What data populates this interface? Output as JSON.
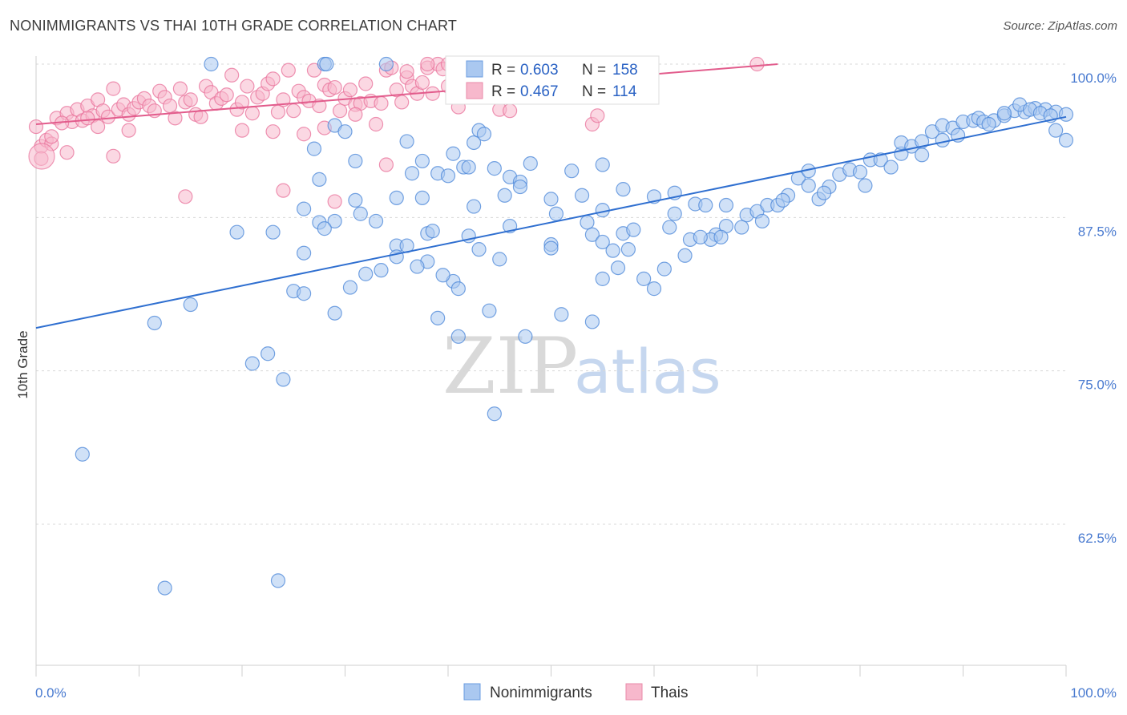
{
  "header": {
    "title": "NONIMMIGRANTS VS THAI 10TH GRADE CORRELATION CHART",
    "source": "Source: ZipAtlas.com"
  },
  "watermark": {
    "zip": "ZIP",
    "atlas": "atlas"
  },
  "legend": {
    "rows": [
      {
        "r_label": "R =",
        "r_value": "0.603",
        "n_label": "N =",
        "n_value": "158"
      },
      {
        "r_label": "R =",
        "r_value": "0.467",
        "n_label": "N =",
        "n_value": "114"
      }
    ]
  },
  "bottom_legend": {
    "items": [
      "Nonimmigrants",
      "Thais"
    ]
  },
  "chart_data": {
    "type": "scatter",
    "title": "NONIMMIGRANTS VS THAI 10TH GRADE CORRELATION CHART",
    "ylabel": "10th Grade",
    "xlabel": "",
    "xlim": [
      0,
      100
    ],
    "ylim": [
      52.5,
      101
    ],
    "x_tick_labels": [
      "0.0%",
      "100.0%"
    ],
    "y_ticks": [
      62.5,
      75.0,
      87.5,
      100.0
    ],
    "y_tick_labels": [
      "62.5%",
      "75.0%",
      "87.5%",
      "100.0%"
    ],
    "grid": "horizontal dashed",
    "legend_position": "top-center",
    "colors": {
      "blue": "#4a86d8",
      "blue_fill": "#aac8f0",
      "pink": "#e8709a",
      "pink_fill": "#f7b8cc"
    },
    "series": [
      {
        "name": "Nonimmigrants",
        "R": 0.603,
        "N": 158,
        "trend": [
          [
            0,
            78.5
          ],
          [
            100,
            95.7
          ]
        ],
        "points": [
          [
            17,
            100
          ],
          [
            28,
            100
          ],
          [
            28.2,
            100
          ],
          [
            34,
            100
          ],
          [
            29,
            95
          ],
          [
            31,
            92.1
          ],
          [
            27,
            93.1
          ],
          [
            37.5,
            92.1
          ],
          [
            39,
            91.1
          ],
          [
            40.5,
            92.7
          ],
          [
            41.5,
            91.6
          ],
          [
            42,
            91.6
          ],
          [
            42.5,
            93.6
          ],
          [
            43,
            94.6
          ],
          [
            37.5,
            89.1
          ],
          [
            31,
            88.9
          ],
          [
            26,
            88.2
          ],
          [
            27.5,
            87.1
          ],
          [
            33,
            87.2
          ],
          [
            38,
            86.2
          ],
          [
            35,
            85.2
          ],
          [
            36,
            85.2
          ],
          [
            42,
            86.0
          ],
          [
            43,
            84.9
          ],
          [
            40.5,
            82.3
          ],
          [
            41,
            81.7
          ],
          [
            45,
            84.1
          ],
          [
            46,
            86.8
          ],
          [
            45.5,
            89.3
          ],
          [
            46,
            90.8
          ],
          [
            47,
            90.4
          ],
          [
            50,
            89.0
          ],
          [
            50.5,
            87.8
          ],
          [
            50,
            85.3
          ],
          [
            53,
            89.3
          ],
          [
            53.5,
            87.1
          ],
          [
            54,
            86.1
          ],
          [
            55,
            85.5
          ],
          [
            56,
            84.8
          ],
          [
            55,
            88.1
          ],
          [
            57,
            86.2
          ],
          [
            57,
            89.8
          ],
          [
            52,
            91.3
          ],
          [
            55,
            91.8
          ],
          [
            60,
            89.2
          ],
          [
            62,
            87.8
          ],
          [
            62,
            89.5
          ],
          [
            64,
            88.6
          ],
          [
            65,
            88.5
          ],
          [
            66,
            86.1
          ],
          [
            67,
            86.8
          ],
          [
            67,
            88.5
          ],
          [
            69,
            87.7
          ],
          [
            70,
            88.0
          ],
          [
            71,
            88.5
          ],
          [
            72,
            88.5
          ],
          [
            73,
            89.3
          ],
          [
            74,
            90.7
          ],
          [
            75,
            90.1
          ],
          [
            76,
            89.0
          ],
          [
            75,
            91.3
          ],
          [
            77,
            90.0
          ],
          [
            78,
            91.0
          ],
          [
            79,
            91.4
          ],
          [
            80,
            91.2
          ],
          [
            81,
            92.2
          ],
          [
            82,
            92.2
          ],
          [
            83,
            91.6
          ],
          [
            84,
            92.7
          ],
          [
            84,
            93.6
          ],
          [
            85,
            93.3
          ],
          [
            86,
            92.6
          ],
          [
            86,
            93.7
          ],
          [
            87,
            94.5
          ],
          [
            88,
            93.8
          ],
          [
            88,
            95.0
          ],
          [
            89,
            94.8
          ],
          [
            90,
            95.3
          ],
          [
            91,
            95.4
          ],
          [
            91.5,
            95.6
          ],
          [
            92,
            95.3
          ],
          [
            93,
            95.4
          ],
          [
            94,
            95.8
          ],
          [
            95,
            96.2
          ],
          [
            96,
            96.1
          ],
          [
            97,
            96.4
          ],
          [
            98,
            96.3
          ],
          [
            99,
            96.1
          ],
          [
            100,
            95.9
          ],
          [
            99,
            94.6
          ],
          [
            100,
            93.8
          ],
          [
            94,
            96.0
          ],
          [
            95.5,
            96.7
          ],
          [
            96.5,
            96.3
          ],
          [
            97.5,
            96.0
          ],
          [
            98.5,
            95.8
          ],
          [
            92.5,
            95.1
          ],
          [
            89.5,
            94.2
          ],
          [
            80.5,
            90.1
          ],
          [
            76.5,
            89.5
          ],
          [
            72.5,
            88.9
          ],
          [
            70.5,
            87.2
          ],
          [
            68.5,
            86.7
          ],
          [
            65.5,
            85.7
          ],
          [
            63.5,
            85.7
          ],
          [
            64.5,
            85.9
          ],
          [
            66.5,
            85.9
          ],
          [
            63,
            84.4
          ],
          [
            61,
            83.3
          ],
          [
            60,
            81.7
          ],
          [
            59,
            82.5
          ],
          [
            55,
            82.5
          ],
          [
            56.5,
            83.4
          ],
          [
            57.5,
            84.9
          ],
          [
            50,
            85.0
          ],
          [
            47,
            90.0
          ],
          [
            44.5,
            91.5
          ],
          [
            40,
            90.9
          ],
          [
            36.5,
            91.1
          ],
          [
            35,
            89.1
          ],
          [
            31.5,
            87.8
          ],
          [
            29,
            87.2
          ],
          [
            28,
            86.6
          ],
          [
            26,
            84.6
          ],
          [
            23,
            86.3
          ],
          [
            19.5,
            86.3
          ],
          [
            15,
            80.4
          ],
          [
            11.5,
            78.9
          ],
          [
            12.5,
            57.3
          ],
          [
            23.5,
            57.9
          ],
          [
            4.5,
            68.2
          ],
          [
            21,
            75.6
          ],
          [
            22.5,
            76.4
          ],
          [
            24,
            74.3
          ],
          [
            25,
            81.5
          ],
          [
            26,
            81.3
          ],
          [
            29,
            79.7
          ],
          [
            30.5,
            81.8
          ],
          [
            32,
            82.9
          ],
          [
            35,
            84.3
          ],
          [
            38,
            83.9
          ],
          [
            39.5,
            82.8
          ],
          [
            39,
            79.3
          ],
          [
            41,
            77.8
          ],
          [
            44,
            79.9
          ],
          [
            44.5,
            71.5
          ],
          [
            47.5,
            77.8
          ],
          [
            51,
            79.6
          ],
          [
            54,
            79.0
          ],
          [
            58,
            86.5
          ],
          [
            61.5,
            86.7
          ],
          [
            48,
            91.9
          ],
          [
            43.5,
            94.3
          ],
          [
            36,
            93.7
          ],
          [
            30,
            94.5
          ],
          [
            38.5,
            86.4
          ],
          [
            37,
            83.5
          ],
          [
            33.5,
            83.2
          ],
          [
            27.5,
            90.6
          ],
          [
            42.5,
            88.4
          ]
        ]
      },
      {
        "name": "Thais",
        "R": 0.467,
        "N": 114,
        "trend": [
          [
            0,
            95.1
          ],
          [
            72,
            100.0
          ]
        ],
        "points": [
          [
            0,
            94.9
          ],
          [
            0.5,
            93.3
          ],
          [
            1,
            93.8
          ],
          [
            1.5,
            93.5
          ],
          [
            2,
            95.6
          ],
          [
            3,
            96.0
          ],
          [
            3.5,
            95.3
          ],
          [
            4,
            96.3
          ],
          [
            4.5,
            95.4
          ],
          [
            5,
            96.6
          ],
          [
            5.5,
            95.8
          ],
          [
            6,
            97.1
          ],
          [
            6.5,
            96.2
          ],
          [
            7,
            95.7
          ],
          [
            7.5,
            98.0
          ],
          [
            8,
            96.3
          ],
          [
            8.5,
            96.7
          ],
          [
            9,
            95.9
          ],
          [
            9.5,
            96.4
          ],
          [
            10,
            96.9
          ],
          [
            10.5,
            97.2
          ],
          [
            11,
            96.6
          ],
          [
            11.5,
            96.2
          ],
          [
            12,
            97.8
          ],
          [
            12.5,
            97.3
          ],
          [
            13,
            96.6
          ],
          [
            13.5,
            95.6
          ],
          [
            14,
            98.0
          ],
          [
            14.5,
            96.9
          ],
          [
            15,
            97.1
          ],
          [
            15.5,
            95.9
          ],
          [
            16,
            95.7
          ],
          [
            16.5,
            98.2
          ],
          [
            17,
            97.7
          ],
          [
            17.5,
            96.8
          ],
          [
            18,
            97.2
          ],
          [
            18.5,
            97.5
          ],
          [
            19,
            99.1
          ],
          [
            19.5,
            96.3
          ],
          [
            20,
            96.9
          ],
          [
            20.5,
            98.2
          ],
          [
            21,
            96.0
          ],
          [
            21.5,
            97.3
          ],
          [
            22,
            97.6
          ],
          [
            22.5,
            98.4
          ],
          [
            23,
            98.8
          ],
          [
            23.5,
            96.1
          ],
          [
            24,
            97.1
          ],
          [
            24.5,
            99.5
          ],
          [
            25,
            96.2
          ],
          [
            25.5,
            97.8
          ],
          [
            26,
            97.3
          ],
          [
            26.5,
            97.0
          ],
          [
            27,
            99.5
          ],
          [
            27.5,
            96.6
          ],
          [
            28,
            98.3
          ],
          [
            28.5,
            97.9
          ],
          [
            29,
            98.1
          ],
          [
            29.5,
            96.2
          ],
          [
            30,
            97.2
          ],
          [
            30.5,
            97.9
          ],
          [
            31,
            96.7
          ],
          [
            31.5,
            96.8
          ],
          [
            32,
            98.4
          ],
          [
            32.5,
            97.0
          ],
          [
            33,
            95.1
          ],
          [
            33.5,
            96.8
          ],
          [
            34,
            99.5
          ],
          [
            34.5,
            99.7
          ],
          [
            35,
            97.9
          ],
          [
            35.5,
            96.9
          ],
          [
            36,
            98.9
          ],
          [
            36.5,
            98.2
          ],
          [
            37,
            97.6
          ],
          [
            37.5,
            98.5
          ],
          [
            38,
            99.7
          ],
          [
            38.5,
            97.6
          ],
          [
            39,
            100
          ],
          [
            39.5,
            99.6
          ],
          [
            40,
            98.2
          ],
          [
            40.5,
            97.6
          ],
          [
            41,
            96.5
          ],
          [
            42,
            99.3
          ],
          [
            45,
            96.3
          ],
          [
            46,
            96.2
          ],
          [
            47,
            97.3
          ],
          [
            48,
            98.7
          ],
          [
            54,
            95.1
          ],
          [
            54.5,
            95.8
          ],
          [
            70,
            100
          ],
          [
            0.5,
            92.3
          ],
          [
            3,
            92.8
          ],
          [
            7.5,
            92.5
          ],
          [
            9,
            94.6
          ],
          [
            14.5,
            89.2
          ],
          [
            20,
            94.6
          ],
          [
            23,
            94.5
          ],
          [
            26,
            94.3
          ],
          [
            24,
            89.7
          ],
          [
            28,
            94.8
          ],
          [
            29,
            88.8
          ],
          [
            31,
            95.9
          ],
          [
            34,
            91.8
          ],
          [
            36,
            99.4
          ],
          [
            38,
            100
          ],
          [
            40,
            100
          ],
          [
            41,
            99.8
          ],
          [
            44,
            100
          ],
          [
            46,
            99.5
          ],
          [
            48,
            100
          ],
          [
            5,
            95.6
          ],
          [
            6,
            94.9
          ],
          [
            1.5,
            94.1
          ],
          [
            2.5,
            95.2
          ]
        ]
      }
    ]
  }
}
